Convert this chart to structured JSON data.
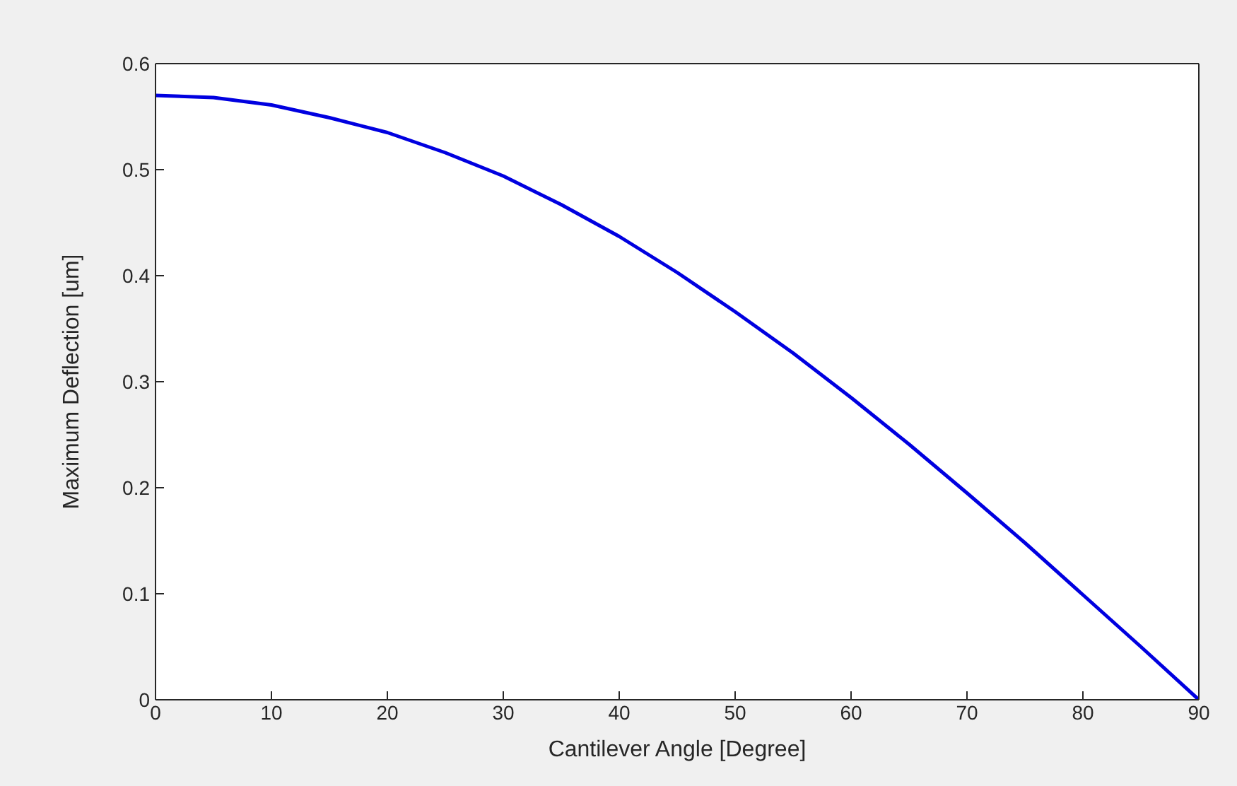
{
  "chart_data": {
    "type": "line",
    "xlabel": "Cantilever Angle [Degree]",
    "ylabel": "Maximum Deflection [um]",
    "x": [
      0,
      5,
      10,
      15,
      20,
      25,
      30,
      35,
      40,
      45,
      50,
      55,
      60,
      65,
      70,
      75,
      80,
      85,
      90
    ],
    "series": [
      {
        "color": "#0000e0",
        "values": [
          0.57,
          0.568,
          0.561,
          0.549,
          0.535,
          0.516,
          0.494,
          0.467,
          0.437,
          0.403,
          0.366,
          0.327,
          0.285,
          0.241,
          0.195,
          0.148,
          0.099,
          0.05,
          0.0
        ]
      }
    ],
    "xlim": [
      0,
      90
    ],
    "xticks": [
      0,
      10,
      20,
      30,
      40,
      50,
      60,
      70,
      80,
      90
    ],
    "ylim": [
      0,
      0.6
    ],
    "yticks": [
      0,
      0.1,
      0.2,
      0.3,
      0.4,
      0.5,
      0.6
    ],
    "legend": false,
    "marker": "none",
    "line_style": "solid"
  }
}
